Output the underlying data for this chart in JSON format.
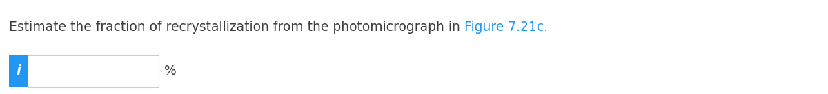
{
  "title_text": "Estimate the fraction of recrystallization from the photomicrograph in ",
  "link_text": "Figure 7.21c.",
  "title_color": "#3d3d3d",
  "link_color": "#2196F3",
  "title_fontsize": 13.5,
  "background_color": "#ffffff",
  "icon_bg_color": "#2196F3",
  "icon_text": "i",
  "icon_text_color": "#ffffff",
  "percent_text": "%",
  "percent_color": "#3d3d3d",
  "percent_fontsize": 13.5
}
